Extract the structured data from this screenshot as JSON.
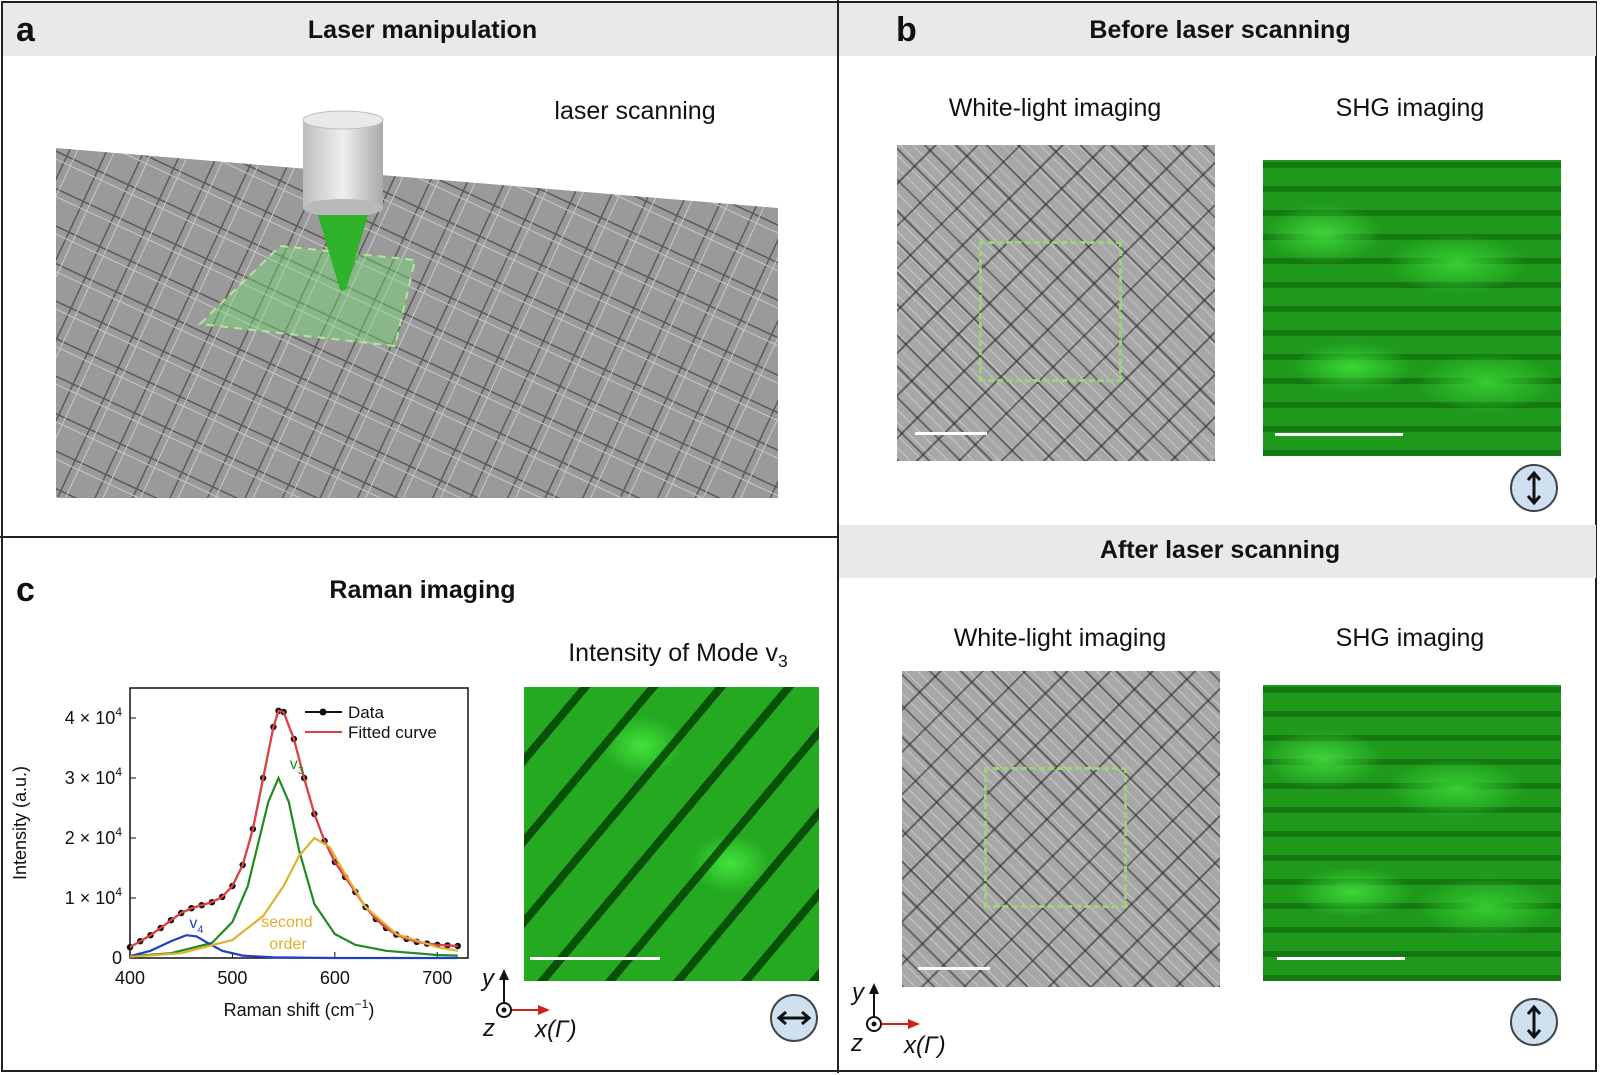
{
  "panel_a": {
    "label": "a",
    "title": "Laser manipulation",
    "annotation": "laser scanning"
  },
  "panel_b": {
    "label": "b",
    "before_title": "Before laser scanning",
    "after_title": "After laser scanning",
    "white_light_label": "White-light imaging",
    "shg_label": "SHG imaging",
    "polarization": "vertical"
  },
  "panel_c": {
    "label": "c",
    "title": "Raman imaging",
    "map_title_prefix": "Intensity of Mode v",
    "map_title_subscript": "3",
    "polarization": "horizontal"
  },
  "axes_glyph": {
    "y": "y",
    "z": "z",
    "x": "x(Γ)"
  },
  "chart_data": {
    "type": "line",
    "xlabel": "Raman shift (cm",
    "xlabel_sup": "−1",
    "xlabel_close": ")",
    "ylabel": "Intensity (a.u.)",
    "xlim": [
      400,
      730
    ],
    "ylim": [
      0,
      45000
    ],
    "xticks": [
      "400",
      "500",
      "600",
      "700"
    ],
    "yticks": [
      {
        "value": 0,
        "label": "0"
      },
      {
        "value": 10000,
        "label": "1 × 10",
        "sup": "4"
      },
      {
        "value": 20000,
        "label": "2 × 10",
        "sup": "4"
      },
      {
        "value": 30000,
        "label": "3 × 10",
        "sup": "4"
      },
      {
        "value": 40000,
        "label": "4 × 10",
        "sup": "4"
      }
    ],
    "legend": [
      {
        "name": "Data",
        "color": "#111111"
      },
      {
        "name": "Fitted curve",
        "color": "#e04040"
      }
    ],
    "annotations": [
      {
        "text": "v",
        "sub": "3",
        "color": "#1e8c1e"
      },
      {
        "text": "v",
        "sub": "4",
        "color": "#2040c0"
      },
      {
        "text": "second",
        "color": "#e0b030"
      },
      {
        "text": "order",
        "color": "#e0b030"
      }
    ],
    "series": [
      {
        "name": "Data",
        "color": "#111111",
        "x": [
          400,
          410,
          420,
          430,
          440,
          450,
          460,
          470,
          480,
          490,
          500,
          510,
          520,
          530,
          540,
          545,
          550,
          560,
          570,
          580,
          590,
          600,
          610,
          620,
          630,
          640,
          650,
          660,
          670,
          680,
          690,
          700,
          710,
          720
        ],
        "y": [
          1800,
          2800,
          3800,
          5000,
          6300,
          7500,
          8300,
          8800,
          9300,
          10200,
          12000,
          15500,
          21500,
          30000,
          38500,
          41200,
          41000,
          36500,
          30000,
          24000,
          19500,
          16000,
          13500,
          11000,
          8500,
          6500,
          5000,
          3900,
          3200,
          2700,
          2400,
          2200,
          2100,
          2000
        ]
      },
      {
        "name": "Fitted curve",
        "color": "#e04040",
        "x": [
          400,
          410,
          420,
          430,
          440,
          450,
          460,
          470,
          480,
          490,
          500,
          510,
          520,
          530,
          540,
          545,
          550,
          560,
          570,
          580,
          590,
          600,
          610,
          620,
          630,
          640,
          650,
          660,
          670,
          680,
          690,
          700,
          710,
          720
        ],
        "y": [
          1800,
          2800,
          3800,
          5000,
          6300,
          7500,
          8300,
          8800,
          9300,
          10200,
          12000,
          15500,
          21500,
          30000,
          38500,
          41200,
          41000,
          36500,
          30000,
          24000,
          19500,
          16000,
          13500,
          11000,
          8500,
          6500,
          5000,
          3900,
          3200,
          2700,
          2400,
          2200,
          2100,
          2000
        ]
      },
      {
        "name": "v3",
        "color": "#1e8c1e",
        "x": [
          400,
          440,
          480,
          500,
          515,
          525,
          535,
          545,
          555,
          565,
          580,
          600,
          620,
          650,
          700,
          720
        ],
        "y": [
          300,
          800,
          2500,
          6000,
          12000,
          19000,
          26000,
          30000,
          26000,
          18000,
          9000,
          4000,
          2200,
          1200,
          500,
          400
        ]
      },
      {
        "name": "v4",
        "color": "#2040c0",
        "x": [
          400,
          420,
          440,
          455,
          465,
          475,
          490,
          510,
          540,
          600,
          720
        ],
        "y": [
          300,
          1200,
          2800,
          3800,
          3600,
          2600,
          1200,
          400,
          100,
          0,
          0
        ]
      },
      {
        "name": "second order",
        "color": "#e0b030",
        "x": [
          400,
          450,
          500,
          530,
          550,
          565,
          580,
          595,
          610,
          630,
          660,
          700,
          720
        ],
        "y": [
          200,
          800,
          3000,
          7000,
          12000,
          17000,
          20000,
          18500,
          14000,
          8500,
          4000,
          1800,
          1200
        ]
      }
    ]
  }
}
